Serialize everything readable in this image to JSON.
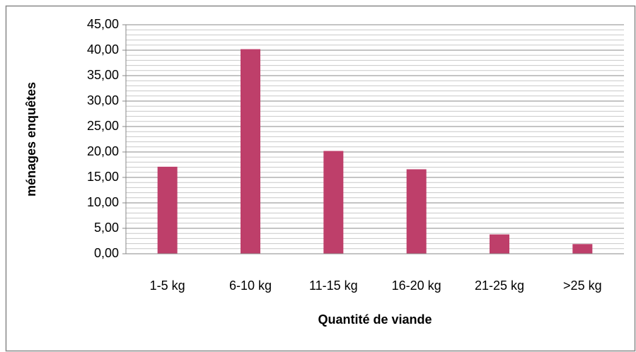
{
  "chart_data": {
    "type": "bar",
    "x_label": "Quantité de viande",
    "y_label": "ménages enquêtes",
    "categories": [
      "1-5 kg",
      "6-10 kg",
      "11-15 kg",
      "16-20 kg",
      "21-25 kg",
      ">25 kg"
    ],
    "values": [
      17.1,
      40.2,
      20.2,
      16.6,
      3.8,
      1.9
    ],
    "color": "#be3f6a",
    "ylim": [
      0,
      45
    ],
    "yticks": [
      {
        "value": 0,
        "label": "0,00"
      },
      {
        "value": 5,
        "label": "5,00"
      },
      {
        "value": 10,
        "label": "10,00"
      },
      {
        "value": 15,
        "label": "15,00"
      },
      {
        "value": 20,
        "label": "20,00"
      },
      {
        "value": 25,
        "label": "25,00"
      },
      {
        "value": 30,
        "label": "30,00"
      },
      {
        "value": 35,
        "label": "35,00"
      },
      {
        "value": 40,
        "label": "40,00"
      },
      {
        "value": 45,
        "label": "45,00"
      }
    ],
    "yminorticks": [
      1,
      2,
      3,
      4,
      6,
      7,
      8,
      9,
      11,
      12,
      13,
      14,
      16,
      17,
      18,
      19,
      21,
      22,
      23,
      24,
      26,
      27,
      28,
      29,
      31,
      32,
      33,
      34,
      36,
      37,
      38,
      39,
      41,
      42,
      43,
      44
    ],
    "grid": true
  }
}
